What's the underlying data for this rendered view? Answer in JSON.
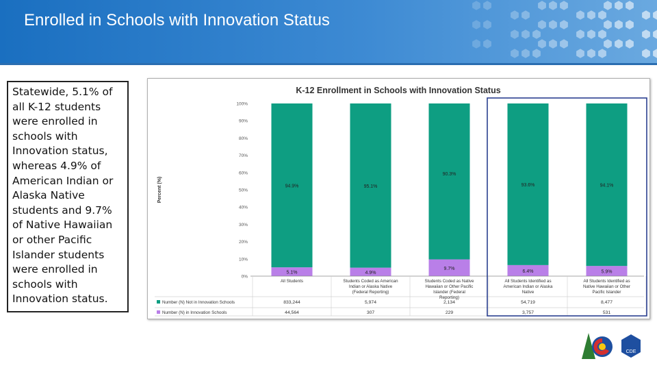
{
  "slide": {
    "title": "Enrolled in Schools with Innovation Status"
  },
  "textbox": {
    "text": "Statewide, 5.1% of all K-12 students were enrolled in schools with Innovation status, whereas 4.9% of American Indian or Alaska Native students and 9.7% of Native Hawaiian or other Pacific Islander students were enrolled in schools with Innovation status."
  },
  "logo": {
    "label": "CDE"
  },
  "colors": {
    "header": "#1a6fc0",
    "not_innovation": "#0e9e82",
    "innovation": "#b97fe8",
    "highlight": "#2a3f8f"
  },
  "chart_data": {
    "type": "bar",
    "stacked": true,
    "title": "K-12 Enrollment in Schools with Innovation Status",
    "ylabel": "Percent (%)",
    "ylim": [
      0,
      100
    ],
    "yticks": [
      "100%",
      "90%",
      "80%",
      "70%",
      "60%",
      "50%",
      "40%",
      "30%",
      "20%",
      "10%",
      "0%"
    ],
    "categories": [
      "All Students",
      "Students Coded as American Indian or Alaska Native (Federal Reporting)",
      "Students Coded as Native Hawaiian or Other Pacific Islander (Federal Reporting)",
      "All Students Identified as American Indian or Alaska Native",
      "All Students Identified as Native Hawaiian or Other Pacific Islander"
    ],
    "series": [
      {
        "name": "Number (N) Not in Innovation Schools",
        "values": [
          94.9,
          95.1,
          90.3,
          93.6,
          94.1
        ],
        "labels": [
          "94.9%",
          "95.1%",
          "90.3%",
          "93.6%",
          "94.1%"
        ],
        "counts": [
          "833,244",
          "5,974",
          "2,134",
          "54,719",
          "8,477"
        ]
      },
      {
        "name": "Number (N) in Innovation Schools",
        "values": [
          5.1,
          4.9,
          9.7,
          6.4,
          5.9
        ],
        "labels": [
          "5.1%",
          "4.9%",
          "9.7%",
          "6.4%",
          "5.9%"
        ],
        "counts": [
          "44,564",
          "307",
          "229",
          "3,757",
          "531"
        ]
      }
    ],
    "highlight_categories": [
      3,
      4
    ],
    "grid": false,
    "legend": "table-below"
  }
}
